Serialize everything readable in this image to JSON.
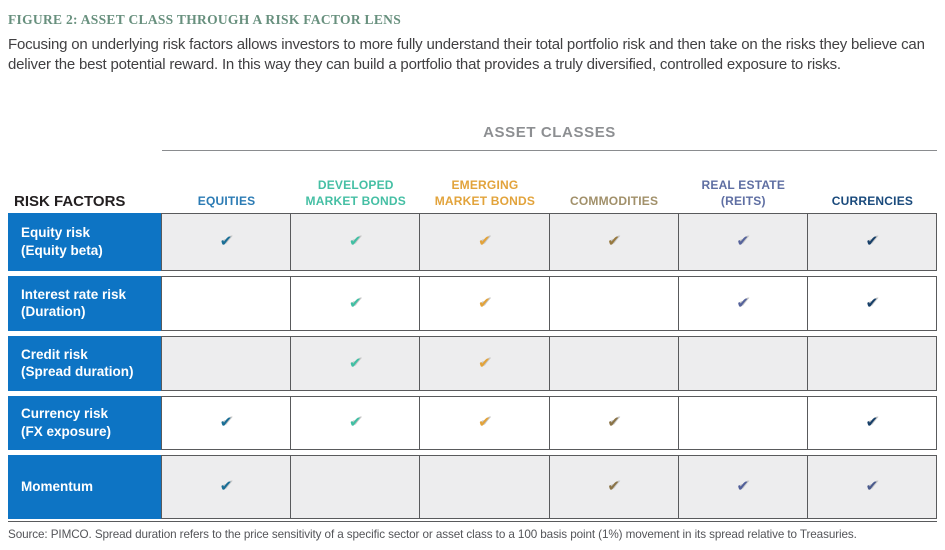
{
  "figure": {
    "title": "FIGURE 2: ASSET CLASS THROUGH A RISK FACTOR LENS",
    "description": "Focusing on underlying risk factors allows investors to more fully understand their total portfolio risk and then take on the risks they believe can deliver the best potential reward. In this way they can build a portfolio that provides a truly diversified, controlled exposure to risks.",
    "source_note": "Source: PIMCO. Spread duration refers to the price sensitivity of a specific sector or asset class to a 100 basis point (1%) movement in its spread relative to Treasuries."
  },
  "table": {
    "group_header": "ASSET CLASSES",
    "row_axis_label": "RISK FACTORS",
    "check_glyph": "✔",
    "columns": [
      {
        "id": "equities",
        "lines": [
          "EQUITIES"
        ],
        "label_color": "#2B7BB4"
      },
      {
        "id": "developed-market-bonds",
        "lines": [
          "DEVELOPED",
          "MARKET BONDS"
        ],
        "label_color": "#45BFA4"
      },
      {
        "id": "emerging-market-bonds",
        "lines": [
          "EMERGING",
          "MARKET BONDS"
        ],
        "label_color": "#E2A33B"
      },
      {
        "id": "commodities",
        "lines": [
          "COMMODITIES"
        ],
        "label_color": "#A1906A"
      },
      {
        "id": "real-estate-reits",
        "lines": [
          "REAL ESTATE",
          "(REITS)"
        ],
        "label_color": "#5F6FA3"
      },
      {
        "id": "currencies",
        "lines": [
          "CURRENCIES"
        ],
        "label_color": "#1A4A7C"
      }
    ],
    "rows": [
      {
        "label": "Equity risk",
        "sublabel": "(Equity beta)",
        "cells": [
          {
            "check": true,
            "color": "#1A6E95"
          },
          {
            "check": true,
            "color": "#41BFA3"
          },
          {
            "check": true,
            "color": "#E2A33B"
          },
          {
            "check": true,
            "color": "#97793F"
          },
          {
            "check": true,
            "color": "#56639B"
          },
          {
            "check": true,
            "color": "#173F68"
          }
        ]
      },
      {
        "label": "Interest rate risk",
        "sublabel": "(Duration)",
        "cells": [
          {
            "check": false
          },
          {
            "check": true,
            "color": "#41BFA3"
          },
          {
            "check": true,
            "color": "#E2A33B"
          },
          {
            "check": false
          },
          {
            "check": true,
            "color": "#56639B"
          },
          {
            "check": true,
            "color": "#173F68"
          }
        ]
      },
      {
        "label": "Credit risk",
        "sublabel": "(Spread duration)",
        "cells": [
          {
            "check": false
          },
          {
            "check": true,
            "color": "#41BFA3"
          },
          {
            "check": true,
            "color": "#E2A33B"
          },
          {
            "check": false
          },
          {
            "check": false
          },
          {
            "check": false
          }
        ]
      },
      {
        "label": "Currency risk",
        "sublabel": "(FX exposure)",
        "cells": [
          {
            "check": true,
            "color": "#1A6E95"
          },
          {
            "check": true,
            "color": "#41BFA3"
          },
          {
            "check": true,
            "color": "#E2A33B"
          },
          {
            "check": true,
            "color": "#8A7347"
          },
          {
            "check": false
          },
          {
            "check": true,
            "color": "#173F68"
          }
        ]
      },
      {
        "label": "Momentum",
        "sublabel": "",
        "cells": [
          {
            "check": true,
            "color": "#1A6E95"
          },
          {
            "check": false
          },
          {
            "check": false
          },
          {
            "check": true,
            "color": "#8A7347"
          },
          {
            "check": true,
            "color": "#515F99"
          },
          {
            "check": true,
            "color": "#4A5A8C"
          }
        ]
      }
    ]
  },
  "colors": {
    "title": "#68907E",
    "body_text": "#414042",
    "group_header_text": "#8D8F92",
    "rule": "#8A8C8F",
    "risk_factors_text": "#231F20",
    "row_header_bg": "#0D74C4",
    "row_header_text": "#FFFFFF",
    "shaded_cell_bg": "#EDEDEE",
    "cell_border": "#595A5C",
    "footnote_text": "#545559"
  }
}
